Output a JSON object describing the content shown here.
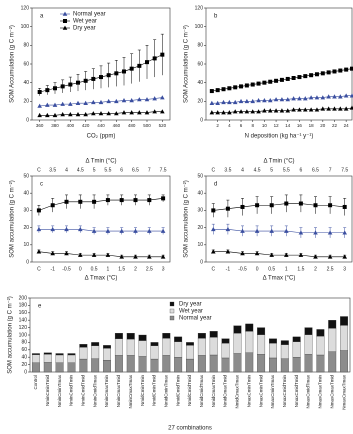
{
  "chart_data": [
    {
      "type": "line",
      "label": "a",
      "ylabel": "SOM Accumulation (g C m⁻²)",
      "xlabel": "CO₂ (ppm)",
      "x": [
        360,
        370,
        380,
        390,
        400,
        410,
        420,
        430,
        440,
        450,
        460,
        470,
        480,
        490,
        500,
        510,
        520
      ],
      "xlim": [
        350,
        530
      ],
      "xticks": [
        360,
        380,
        400,
        420,
        440,
        460,
        480,
        500,
        520
      ],
      "ylim": [
        0,
        120
      ],
      "yticks": [
        0,
        20,
        40,
        60,
        80,
        100,
        120
      ],
      "legend": "upper left",
      "series": [
        {
          "name": "Normal year",
          "color": "#3b4fa0",
          "marker": "triangle",
          "values": [
            15,
            16,
            16,
            17,
            17,
            18,
            18,
            19,
            19,
            20,
            20,
            21,
            21,
            22,
            22,
            23,
            24
          ]
        },
        {
          "name": "Wet year",
          "color": "#000000",
          "marker": "square",
          "values": [
            30,
            32,
            34,
            36,
            38,
            40,
            42,
            44,
            46,
            48,
            50,
            52,
            55,
            58,
            62,
            66,
            70
          ],
          "errors": [
            4,
            5,
            6,
            7,
            8,
            9,
            10,
            11,
            12,
            13,
            14,
            15,
            16,
            17,
            18,
            20,
            22
          ]
        },
        {
          "name": "Dry year",
          "color": "#000000",
          "marker": "triangle",
          "values": [
            5,
            5,
            5,
            6,
            6,
            6,
            6,
            7,
            7,
            7,
            7,
            8,
            8,
            8,
            8,
            9,
            9
          ]
        }
      ]
    },
    {
      "type": "line",
      "label": "b",
      "ylabel": "SOM Accumulation (g C m⁻²)",
      "xlabel": "N deposition (kg ha⁻¹ y⁻¹)",
      "x": [
        1,
        2,
        3,
        4,
        5,
        6,
        7,
        8,
        9,
        10,
        11,
        12,
        13,
        14,
        15,
        16,
        17,
        18,
        19,
        20,
        21,
        22,
        23,
        24,
        25
      ],
      "xlim": [
        0,
        25
      ],
      "xticks": [
        2,
        4,
        6,
        8,
        10,
        12,
        14,
        16,
        18,
        20,
        22,
        24
      ],
      "ylim": [
        0,
        120
      ],
      "yticks": [
        0,
        20,
        40,
        60,
        80,
        100,
        120
      ],
      "series": [
        {
          "color": "#3b4fa0",
          "marker": "triangle",
          "values": [
            18,
            18,
            19,
            19,
            19,
            20,
            20,
            20,
            21,
            21,
            21,
            22,
            22,
            22,
            23,
            23,
            23,
            24,
            24,
            24,
            25,
            25,
            25,
            26,
            26
          ]
        },
        {
          "color": "#000000",
          "marker": "square",
          "values": [
            31,
            32,
            33,
            34,
            35,
            36,
            37,
            38,
            39,
            40,
            41,
            42,
            43,
            44,
            45,
            46,
            47,
            48,
            49,
            50,
            51,
            52,
            53,
            54,
            55
          ]
        },
        {
          "color": "#000000",
          "marker": "triangle",
          "values": [
            8,
            8,
            8,
            8,
            9,
            9,
            9,
            9,
            9,
            10,
            10,
            10,
            10,
            10,
            11,
            11,
            11,
            11,
            11,
            12,
            12,
            12,
            12,
            12,
            13
          ]
        }
      ]
    },
    {
      "type": "line",
      "label": "c",
      "ylabel": "SOM accumulation (g C m⁻²)",
      "xlabel": "Δ Tmax (°C)",
      "top_xlabel": "Δ Tmin (°C)",
      "categories": [
        "C",
        "-1",
        "-0.5",
        "0",
        "0.5",
        "1",
        "1.5",
        "2",
        "2.5",
        "3"
      ],
      "top_categories": [
        "C",
        "3.5",
        "4",
        "4.5",
        "5",
        "5.5",
        "6",
        "6.5",
        "7",
        "7.5"
      ],
      "ylim": [
        0,
        50
      ],
      "yticks": [
        0,
        10,
        20,
        30,
        40,
        50
      ],
      "series": [
        {
          "color": "#000000",
          "marker": "square",
          "values": [
            30,
            33,
            35,
            35,
            35,
            36,
            36,
            36,
            36,
            37
          ],
          "errors": [
            3,
            4,
            4,
            4,
            4,
            3,
            3,
            3,
            3,
            2
          ]
        },
        {
          "color": "#3b4fa0",
          "marker": "triangle",
          "values": [
            19,
            19,
            19,
            19,
            18,
            18,
            18,
            18,
            18,
            18
          ],
          "errors": [
            2,
            2,
            2,
            2,
            2,
            2,
            2,
            2,
            2,
            2
          ]
        },
        {
          "color": "#000000",
          "marker": "triangle",
          "values": [
            6,
            5,
            5,
            4,
            4,
            4,
            3,
            3,
            3,
            3
          ],
          "errors": [
            1,
            1,
            1,
            1,
            1,
            1,
            1,
            1,
            1,
            1
          ]
        }
      ]
    },
    {
      "type": "line",
      "label": "d",
      "ylabel": "SOM accumulation (g C m⁻²)",
      "xlabel": "Δ Tmax (°C)",
      "top_xlabel": "Δ Tmin (°C)",
      "categories": [
        "C",
        "-1",
        "-0.5",
        "0",
        "0.5",
        "1",
        "1.5",
        "2",
        "2.5",
        "3"
      ],
      "top_categories": [
        "C",
        "3.5",
        "4",
        "4.5",
        "5",
        "5.5",
        "6",
        "6.5",
        "7",
        "7.5"
      ],
      "ylim": [
        0,
        50
      ],
      "yticks": [
        0,
        10,
        20,
        30,
        40,
        50
      ],
      "series": [
        {
          "color": "#000000",
          "marker": "square",
          "values": [
            30,
            31,
            32,
            33,
            33,
            34,
            34,
            33,
            33,
            32
          ],
          "errors": [
            4,
            5,
            5,
            5,
            5,
            5,
            5,
            5,
            5,
            5
          ]
        },
        {
          "color": "#3b4fa0",
          "marker": "triangle",
          "values": [
            19,
            19,
            18,
            18,
            18,
            18,
            17,
            17,
            17,
            17
          ],
          "errors": [
            3,
            3,
            3,
            3,
            3,
            3,
            3,
            3,
            3,
            3
          ]
        },
        {
          "color": "#000000",
          "marker": "triangle",
          "values": [
            6,
            6,
            5,
            5,
            4,
            4,
            4,
            3,
            3,
            3
          ],
          "errors": [
            1,
            1,
            1,
            1,
            1,
            1,
            1,
            1,
            1,
            1
          ]
        }
      ]
    },
    {
      "type": "bar",
      "label": "e",
      "ylabel": "SOM accumulation (g C m⁻²)",
      "xlabel": "27 combinations",
      "stacked": true,
      "categories": [
        "Control",
        "NminCminTmid",
        "NminCminTmax",
        "NminCmidTmin",
        "NminCmidTmid",
        "NminCmidTmax",
        "NminCmaxTmin",
        "NminCmaxTmid",
        "NminCmaxTmax",
        "NmidCminTmin",
        "NmidCminTmid",
        "NmidCminTmax",
        "NmidCmidTmin",
        "NmidCmidTmid",
        "NmidCmidTmax",
        "NmidCmaxTmin",
        "NmidCmaxTmid",
        "NmidCmaxTmax",
        "NmaxCminTmin",
        "NmaxCminTmid",
        "NmaxCminTmax",
        "NmaxCmidTmin",
        "NmaxCmidTmid",
        "NmaxCmidTmax",
        "NmaxCmaxTmin",
        "NmaxCmaxTmid",
        "NmaxCmaxTmax"
      ],
      "ylim": [
        0,
        200
      ],
      "yticks": [
        0,
        20,
        40,
        60,
        80,
        100,
        120,
        140,
        160,
        180,
        200
      ],
      "legend": "upper center",
      "series": [
        {
          "name": "Normal year",
          "color": "#8c8c8c",
          "values": [
            25,
            26,
            25,
            25,
            35,
            36,
            32,
            45,
            45,
            42,
            35,
            45,
            40,
            35,
            45,
            46,
            38,
            50,
            52,
            48,
            38,
            36,
            40,
            48,
            46,
            55,
            58
          ]
        },
        {
          "name": "Wet year",
          "color": "#dcdcdc",
          "values": [
            22,
            22,
            21,
            21,
            32,
            35,
            32,
            45,
            44,
            43,
            36,
            46,
            42,
            37,
            46,
            48,
            40,
            55,
            58,
            53,
            40,
            38,
            42,
            53,
            51,
            63,
            68
          ]
        },
        {
          "name": "Dry year",
          "color": "#111111",
          "values": [
            3,
            4,
            4,
            4,
            8,
            9,
            8,
            15,
            16,
            15,
            9,
            14,
            13,
            8,
            14,
            16,
            12,
            20,
            20,
            19,
            12,
            11,
            13,
            19,
            18,
            22,
            24
          ]
        }
      ]
    }
  ]
}
